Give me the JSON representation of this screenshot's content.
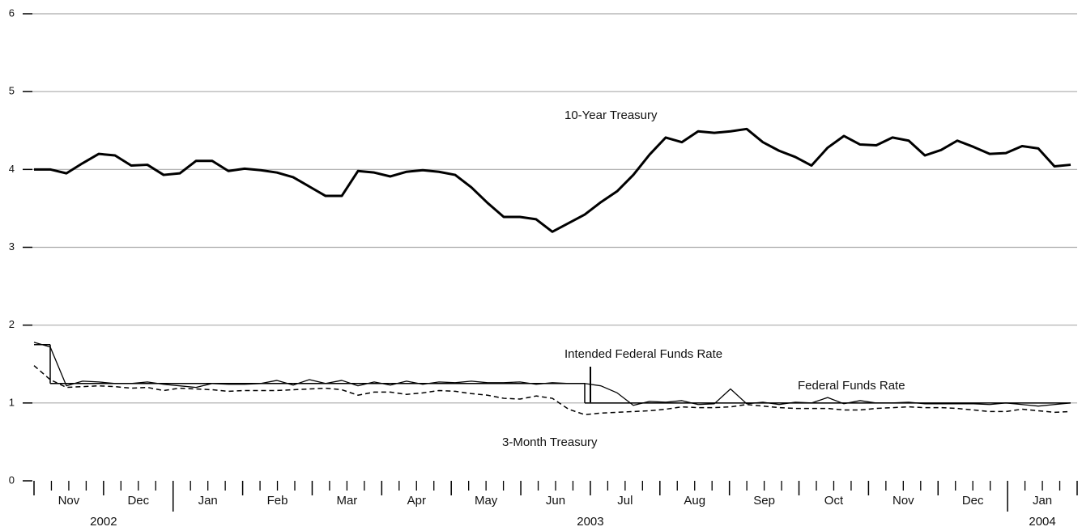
{
  "chart_data": {
    "type": "line",
    "ylim": [
      0,
      6
    ],
    "yticks": [
      0,
      1,
      2,
      3,
      4,
      5,
      6
    ],
    "grid": true,
    "years": [
      {
        "label": "2002",
        "months": [
          "Nov",
          "Dec"
        ]
      },
      {
        "label": "2003",
        "months": [
          "Jan",
          "Feb",
          "Mar",
          "Apr",
          "May",
          "Jun",
          "Jul",
          "Aug",
          "Sep",
          "Oct",
          "Nov",
          "Dec"
        ]
      },
      {
        "label": "2004",
        "months": [
          "Jan"
        ]
      }
    ],
    "series": [
      {
        "name": "10-Year Treasury",
        "color": "#000000",
        "line_width": 3,
        "dashed": false,
        "step": false,
        "values": [
          4.0,
          4.0,
          3.95,
          4.08,
          4.2,
          4.18,
          4.05,
          4.06,
          3.93,
          3.95,
          4.11,
          4.11,
          3.98,
          4.01,
          3.99,
          3.96,
          3.9,
          3.78,
          3.66,
          3.66,
          3.98,
          3.96,
          3.91,
          3.97,
          3.99,
          3.97,
          3.93,
          3.77,
          3.57,
          3.39,
          3.39,
          3.36,
          3.2,
          3.31,
          3.42,
          3.58,
          3.72,
          3.93,
          4.19,
          4.41,
          4.35,
          4.49,
          4.47,
          4.49,
          4.52,
          4.35,
          4.24,
          4.16,
          4.05,
          4.28,
          4.43,
          4.32,
          4.31,
          4.41,
          4.37,
          4.18,
          4.25,
          4.37,
          4.29,
          4.2,
          4.21,
          4.3,
          4.27,
          4.04,
          4.06
        ]
      },
      {
        "name": "Intended Federal Funds Rate",
        "color": "#000000",
        "line_width": 1.5,
        "dashed": false,
        "step": true,
        "values": [
          1.75,
          1.25,
          1.25,
          1.25,
          1.25,
          1.25,
          1.25,
          1.25,
          1.25,
          1.25,
          1.25,
          1.25,
          1.25,
          1.25,
          1.25,
          1.25,
          1.25,
          1.25,
          1.25,
          1.25,
          1.25,
          1.25,
          1.25,
          1.25,
          1.25,
          1.25,
          1.25,
          1.25,
          1.25,
          1.25,
          1.25,
          1.25,
          1.25,
          1.25,
          1.0,
          1.0,
          1.0,
          1.0,
          1.0,
          1.0,
          1.0,
          1.0,
          1.0,
          1.0,
          1.0,
          1.0,
          1.0,
          1.0,
          1.0,
          1.0,
          1.0,
          1.0,
          1.0,
          1.0,
          1.0,
          1.0,
          1.0,
          1.0,
          1.0,
          1.0,
          1.0,
          1.0,
          1.0,
          1.0,
          1.0
        ]
      },
      {
        "name": "Federal Funds Rate",
        "color": "#000000",
        "line_width": 1.3,
        "dashed": false,
        "step": false,
        "values": [
          1.78,
          1.72,
          1.22,
          1.28,
          1.27,
          1.25,
          1.25,
          1.27,
          1.24,
          1.22,
          1.2,
          1.25,
          1.24,
          1.24,
          1.25,
          1.29,
          1.23,
          1.3,
          1.25,
          1.29,
          1.22,
          1.27,
          1.23,
          1.28,
          1.24,
          1.27,
          1.26,
          1.28,
          1.26,
          1.26,
          1.27,
          1.24,
          1.26,
          1.25,
          1.25,
          1.22,
          1.13,
          0.97,
          1.02,
          1.01,
          1.03,
          0.98,
          0.99,
          1.18,
          0.99,
          1.01,
          0.98,
          1.01,
          1.0,
          1.07,
          0.99,
          1.03,
          1.0,
          1.0,
          1.01,
          0.99,
          0.99,
          0.99,
          0.99,
          0.98,
          1.0,
          0.98,
          0.96,
          0.98,
          1.0
        ]
      },
      {
        "name": "3-Month Treasury",
        "color": "#000000",
        "line_width": 1.5,
        "dashed": true,
        "step": false,
        "values": [
          1.48,
          1.3,
          1.2,
          1.21,
          1.22,
          1.21,
          1.19,
          1.2,
          1.16,
          1.19,
          1.18,
          1.17,
          1.15,
          1.16,
          1.16,
          1.16,
          1.17,
          1.18,
          1.19,
          1.17,
          1.1,
          1.14,
          1.14,
          1.11,
          1.13,
          1.16,
          1.15,
          1.12,
          1.1,
          1.06,
          1.05,
          1.09,
          1.06,
          0.92,
          0.85,
          0.87,
          0.88,
          0.89,
          0.9,
          0.92,
          0.95,
          0.94,
          0.94,
          0.95,
          0.98,
          0.96,
          0.94,
          0.93,
          0.93,
          0.93,
          0.91,
          0.91,
          0.93,
          0.94,
          0.95,
          0.94,
          0.94,
          0.93,
          0.91,
          0.89,
          0.89,
          0.92,
          0.9,
          0.88,
          0.89
        ]
      }
    ]
  }
}
